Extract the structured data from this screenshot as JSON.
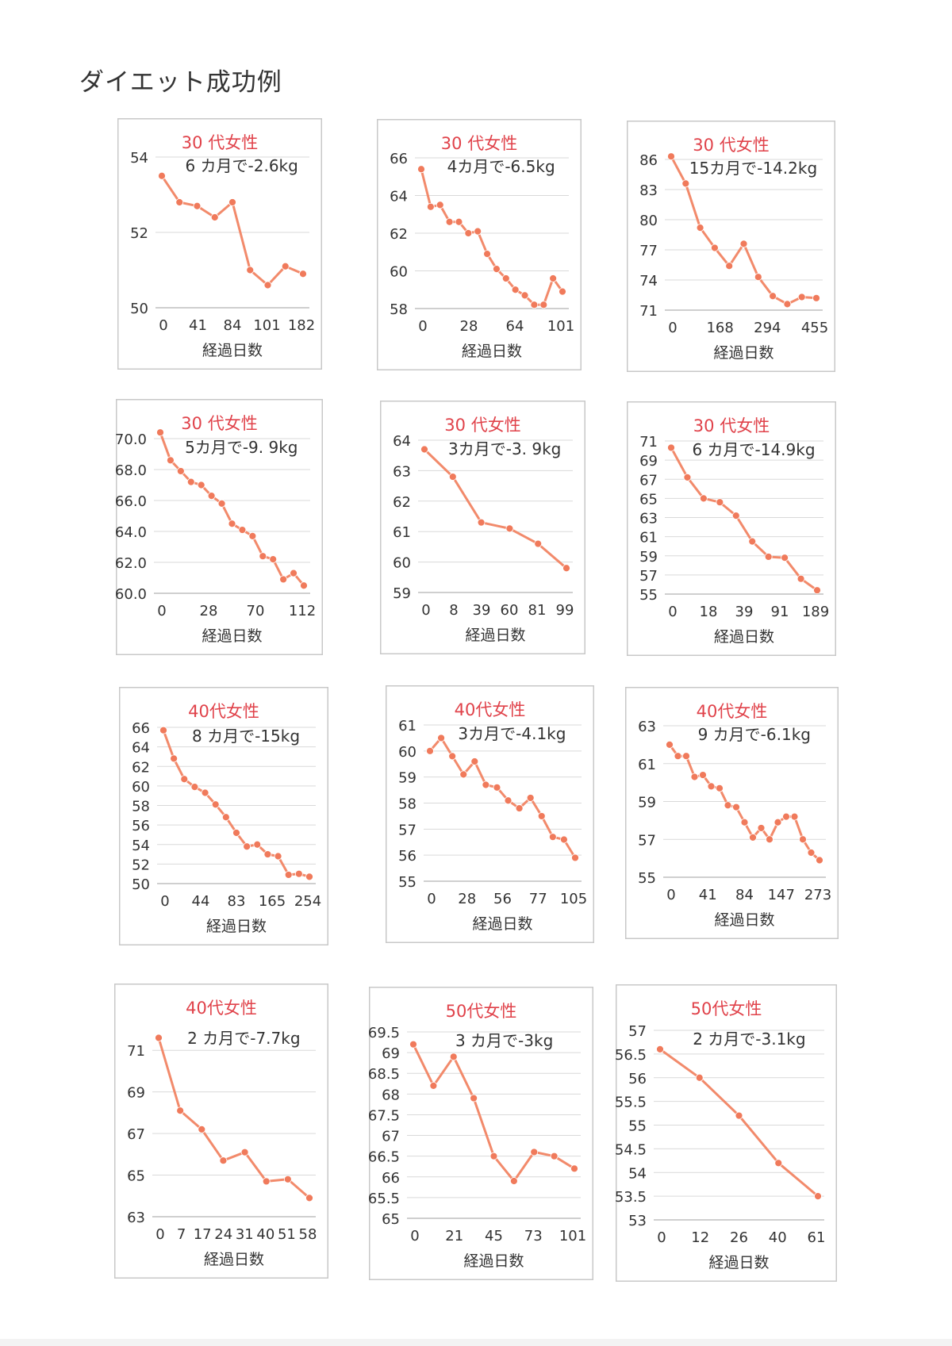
{
  "page": {
    "title": "ダイエット成功例"
  },
  "colors": {
    "line": "#f28a6b",
    "marker": "#f07a5b",
    "title": "#e0424a",
    "grid": "#d9d9d9",
    "axis": "#bfbfbf",
    "border": "#c8c8c8",
    "text": "#333333"
  },
  "chart_data": [
    {
      "type": "line",
      "title": "30 代女性",
      "annotation": "6 カ月で-2.6kg",
      "xlabel": "経過日数",
      "ylim": [
        50,
        54
      ],
      "yticks": [
        "50",
        "52",
        "54"
      ],
      "grid": true,
      "xticks": [
        "0",
        "41",
        "84",
        "101",
        "182"
      ],
      "values": [
        53.5,
        52.8,
        52.7,
        52.4,
        52.8,
        51.0,
        50.6,
        51.1,
        50.9
      ]
    },
    {
      "type": "line",
      "title": "30 代女性",
      "annotation": "4カ月で-6.5kg",
      "xlabel": "経過日数",
      "ylim": [
        58,
        66
      ],
      "yticks": [
        "58",
        "60",
        "62",
        "64",
        "66"
      ],
      "grid": true,
      "xticks": [
        "0",
        "28",
        "64",
        "101"
      ],
      "values": [
        65.4,
        63.4,
        63.5,
        62.6,
        62.6,
        62.0,
        62.1,
        60.9,
        60.1,
        59.6,
        59.0,
        58.7,
        58.2,
        58.2,
        59.6,
        58.9
      ]
    },
    {
      "type": "line",
      "title": "30 代女性",
      "annotation": "15カ月で-14.2kg",
      "xlabel": "経過日数",
      "ylim": [
        71,
        86
      ],
      "yticks": [
        "71",
        "74",
        "77",
        "80",
        "83",
        "86"
      ],
      "grid": true,
      "xticks": [
        "0",
        "168",
        "294",
        "455"
      ],
      "values": [
        86.3,
        83.6,
        79.2,
        77.2,
        75.4,
        77.6,
        74.3,
        72.4,
        71.6,
        72.3,
        72.2
      ]
    },
    {
      "type": "line",
      "title": "30 代女性",
      "annotation": "5カ月で-9. 9kg",
      "xlabel": "経過日数",
      "ylim": [
        60,
        70
      ],
      "yticks": [
        "60.0",
        "62.0",
        "64.0",
        "66.0",
        "68.0",
        "70.0"
      ],
      "grid": true,
      "xticks": [
        "0",
        "28",
        "70",
        "112"
      ],
      "values": [
        70.4,
        68.6,
        67.9,
        67.2,
        67.0,
        66.3,
        65.8,
        64.5,
        64.1,
        63.7,
        62.4,
        62.2,
        60.9,
        61.3,
        60.5
      ]
    },
    {
      "type": "line",
      "title": "30 代女性",
      "annotation": "3カ月で-3. 9kg",
      "xlabel": "経過日数",
      "ylim": [
        59,
        64
      ],
      "yticks": [
        "59",
        "60",
        "61",
        "62",
        "63",
        "64"
      ],
      "grid": true,
      "xticks": [
        "0",
        "8",
        "39",
        "60",
        "81",
        "99"
      ],
      "values": [
        63.7,
        62.8,
        61.3,
        61.1,
        60.6,
        59.8
      ]
    },
    {
      "type": "line",
      "title": "30 代女性",
      "annotation": "6 カ月で-14.9kg",
      "xlabel": "経過日数",
      "ylim": [
        55,
        71
      ],
      "yticks": [
        "55",
        "57",
        "59",
        "61",
        "63",
        "65",
        "67",
        "69",
        "71"
      ],
      "grid": true,
      "xticks": [
        "0",
        "18",
        "39",
        "91",
        "189"
      ],
      "values": [
        70.3,
        67.2,
        65.0,
        64.6,
        63.2,
        60.5,
        58.9,
        58.8,
        56.6,
        55.4
      ]
    },
    {
      "type": "line",
      "title": "40代女性",
      "annotation": "8 カ月で-15kg",
      "xlabel": "経過日数",
      "ylim": [
        50,
        66
      ],
      "yticks": [
        "50",
        "52",
        "54",
        "56",
        "58",
        "60",
        "62",
        "64",
        "66"
      ],
      "grid": true,
      "xticks": [
        "0",
        "44",
        "83",
        "165",
        "254"
      ],
      "values": [
        65.7,
        62.8,
        60.7,
        59.9,
        59.3,
        58.1,
        56.8,
        55.2,
        53.8,
        54.0,
        53.0,
        52.8,
        50.9,
        51.0,
        50.7
      ]
    },
    {
      "type": "line",
      "title": "40代女性",
      "annotation": "3カ月で-4.1kg",
      "xlabel": "経過日数",
      "ylim": [
        55,
        61
      ],
      "yticks": [
        "55",
        "56",
        "57",
        "58",
        "59",
        "60",
        "61"
      ],
      "grid": true,
      "xticks": [
        "0",
        "28",
        "56",
        "77",
        "105"
      ],
      "values": [
        60.0,
        60.5,
        59.8,
        59.1,
        59.6,
        58.7,
        58.6,
        58.1,
        57.8,
        58.2,
        57.5,
        56.7,
        56.6,
        55.9
      ]
    },
    {
      "type": "line",
      "title": "40代女性",
      "annotation": "9 カ月で-6.1kg",
      "xlabel": "経過日数",
      "ylim": [
        55,
        63
      ],
      "yticks": [
        "55",
        "57",
        "59",
        "61",
        "63"
      ],
      "grid": true,
      "xticks": [
        "0",
        "41",
        "84",
        "147",
        "273"
      ],
      "values": [
        62.0,
        61.4,
        61.4,
        60.3,
        60.4,
        59.8,
        59.7,
        58.8,
        58.7,
        57.9,
        57.1,
        57.6,
        57.0,
        57.9,
        58.2,
        58.2,
        57.0,
        56.3,
        55.9
      ]
    },
    {
      "type": "line",
      "title": "40代女性",
      "annotation": "2 カ月で-7.7kg",
      "xlabel": "経過日数",
      "ylim": [
        63,
        72
      ],
      "yticks": [
        "63",
        "65",
        "67",
        "69",
        "71"
      ],
      "grid": true,
      "xticks": [
        "0",
        "7",
        "17",
        "24",
        "31",
        "40",
        "51",
        "58"
      ],
      "values": [
        71.6,
        68.1,
        67.2,
        65.7,
        66.1,
        64.7,
        64.8,
        63.9
      ]
    },
    {
      "type": "line",
      "title": "50代女性",
      "annotation": "3 カ月で-3kg",
      "xlabel": "経過日数",
      "ylim": [
        65,
        69.5
      ],
      "yticks": [
        "65",
        "65.5",
        "66",
        "66.5",
        "67",
        "67.5",
        "68",
        "68.5",
        "69",
        "69.5"
      ],
      "grid": true,
      "xticks": [
        "0",
        "21",
        "45",
        "73",
        "101"
      ],
      "values": [
        69.2,
        68.2,
        68.9,
        67.9,
        66.5,
        65.9,
        66.6,
        66.5,
        66.2
      ]
    },
    {
      "type": "line",
      "title": "50代女性",
      "annotation": "2 カ月で-3.1kg",
      "xlabel": "経過日数",
      "ylim": [
        53,
        57
      ],
      "yticks": [
        "53",
        "53.5",
        "54",
        "54.5",
        "55",
        "55.5",
        "56",
        "56.5",
        "57"
      ],
      "grid": true,
      "xticks": [
        "0",
        "12",
        "26",
        "40",
        "61"
      ],
      "values": [
        56.6,
        56.0,
        55.2,
        54.2,
        53.5
      ]
    }
  ]
}
